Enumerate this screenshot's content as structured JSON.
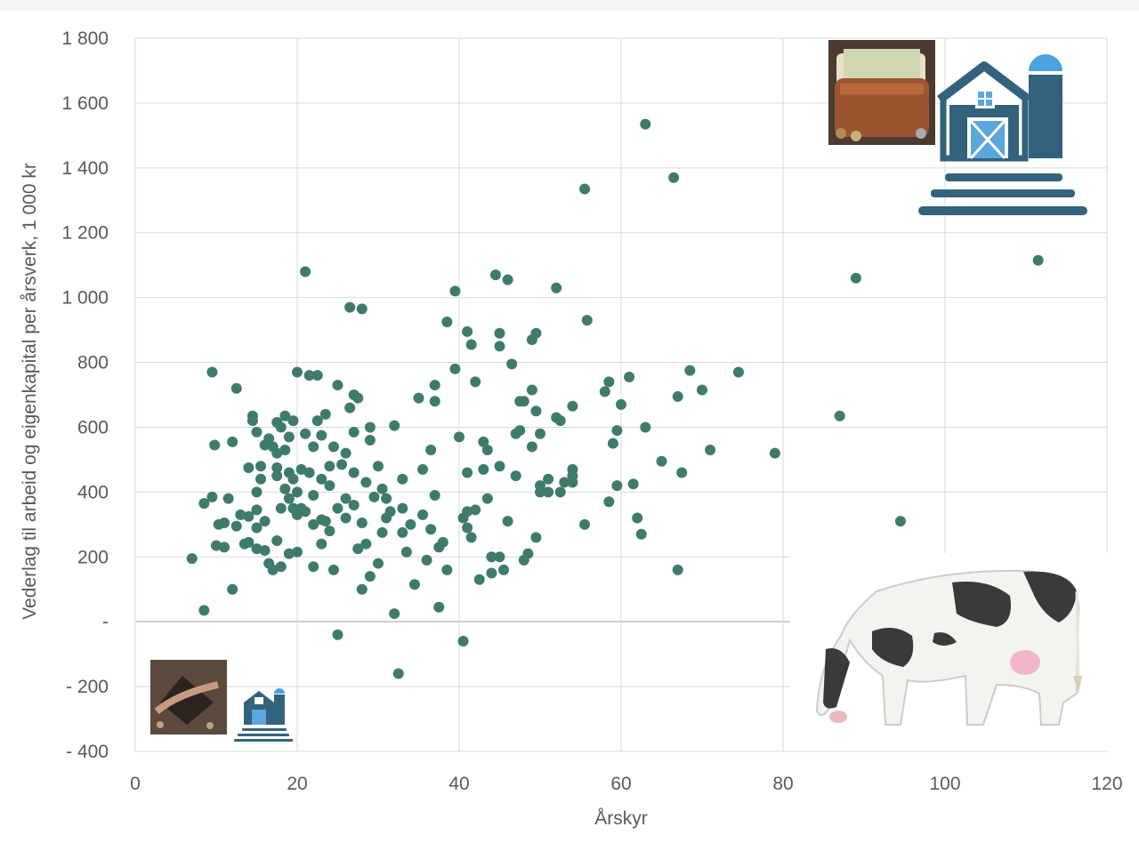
{
  "chart_data": {
    "type": "scatter",
    "xlabel": "Årskyr",
    "ylabel": "Vederlag til arbeid og eigenkapital per årsverk, 1 000 kr",
    "xlim": [
      0,
      120
    ],
    "ylim": [
      -400,
      1800
    ],
    "grid": true,
    "marker_color": "#3f7b6c",
    "x_ticks": [
      "0",
      "20",
      "40",
      "60",
      "80",
      "100",
      "120"
    ],
    "y_ticks": [
      "- 400",
      "- 200",
      "-",
      "200",
      "400",
      "600",
      "800",
      "1 000",
      "1 200",
      "1 400",
      "1 600",
      "1 800"
    ],
    "series": [
      {
        "points": [
          [
            7,
            195
          ],
          [
            8.5,
            35
          ],
          [
            8.5,
            365
          ],
          [
            9.5,
            385
          ],
          [
            9.5,
            770
          ],
          [
            9.8,
            545
          ],
          [
            10,
            235
          ],
          [
            10.3,
            300
          ],
          [
            11,
            230
          ],
          [
            11,
            305
          ],
          [
            11.5,
            380
          ],
          [
            12,
            555
          ],
          [
            12,
            100
          ],
          [
            12.5,
            295
          ],
          [
            12.5,
            720
          ],
          [
            13,
            330
          ],
          [
            13.5,
            240
          ],
          [
            14,
            245
          ],
          [
            14,
            325
          ],
          [
            14,
            475
          ],
          [
            14.5,
            620
          ],
          [
            14.5,
            635
          ],
          [
            15,
            290
          ],
          [
            15,
            345
          ],
          [
            15,
            400
          ],
          [
            15,
            585
          ],
          [
            15,
            225
          ],
          [
            15.5,
            440
          ],
          [
            15.5,
            480
          ],
          [
            16,
            545
          ],
          [
            16,
            310
          ],
          [
            16,
            220
          ],
          [
            16.5,
            180
          ],
          [
            16.5,
            565
          ],
          [
            17,
            160
          ],
          [
            17,
            540
          ],
          [
            17.5,
            250
          ],
          [
            17.5,
            450
          ],
          [
            17.5,
            475
          ],
          [
            17.5,
            520
          ],
          [
            17.5,
            615
          ],
          [
            18,
            600
          ],
          [
            18,
            350
          ],
          [
            18,
            170
          ],
          [
            18.5,
            635
          ],
          [
            18.5,
            410
          ],
          [
            18.5,
            530
          ],
          [
            19,
            380
          ],
          [
            19,
            460
          ],
          [
            19,
            570
          ],
          [
            19,
            210
          ],
          [
            19.5,
            350
          ],
          [
            19.5,
            440
          ],
          [
            19.5,
            620
          ],
          [
            20,
            330
          ],
          [
            20,
            400
          ],
          [
            20,
            770
          ],
          [
            20,
            215
          ],
          [
            20.5,
            350
          ],
          [
            20.5,
            470
          ],
          [
            21,
            340
          ],
          [
            21,
            580
          ],
          [
            21,
            1080
          ],
          [
            21.5,
            460
          ],
          [
            21.5,
            760
          ],
          [
            22,
            540
          ],
          [
            22,
            170
          ],
          [
            22,
            300
          ],
          [
            22,
            390
          ],
          [
            22.5,
            620
          ],
          [
            22.5,
            760
          ],
          [
            23,
            240
          ],
          [
            23,
            315
          ],
          [
            23,
            440
          ],
          [
            23,
            575
          ],
          [
            23.5,
            640
          ],
          [
            23.5,
            310
          ],
          [
            24,
            480
          ],
          [
            24,
            280
          ],
          [
            24,
            420
          ],
          [
            24.5,
            540
          ],
          [
            24.5,
            160
          ],
          [
            25,
            350
          ],
          [
            25,
            730
          ],
          [
            25,
            -40
          ],
          [
            25.5,
            485
          ],
          [
            26,
            520
          ],
          [
            26,
            380
          ],
          [
            26,
            320
          ],
          [
            26.5,
            970
          ],
          [
            26.5,
            660
          ],
          [
            27,
            585
          ],
          [
            27,
            700
          ],
          [
            27,
            360
          ],
          [
            27,
            460
          ],
          [
            27.5,
            690
          ],
          [
            27.5,
            225
          ],
          [
            28,
            965
          ],
          [
            28,
            305
          ],
          [
            28,
            100
          ],
          [
            28.5,
            430
          ],
          [
            28.5,
            240
          ],
          [
            29,
            560
          ],
          [
            29,
            600
          ],
          [
            29,
            140
          ],
          [
            29.5,
            385
          ],
          [
            30,
            480
          ],
          [
            30,
            180
          ],
          [
            30.5,
            410
          ],
          [
            30.5,
            275
          ],
          [
            31,
            320
          ],
          [
            31,
            380
          ],
          [
            31.5,
            340
          ],
          [
            32,
            605
          ],
          [
            32,
            25
          ],
          [
            32.5,
            -160
          ],
          [
            33,
            275
          ],
          [
            33,
            440
          ],
          [
            33,
            350
          ],
          [
            33.5,
            215
          ],
          [
            34,
            300
          ],
          [
            34.5,
            115
          ],
          [
            35,
            690
          ],
          [
            35.5,
            470
          ],
          [
            35.5,
            330
          ],
          [
            36,
            190
          ],
          [
            36.5,
            530
          ],
          [
            36.5,
            285
          ],
          [
            37,
            730
          ],
          [
            37,
            680
          ],
          [
            37,
            390
          ],
          [
            37.5,
            230
          ],
          [
            37.5,
            45
          ],
          [
            38,
            245
          ],
          [
            38.5,
            925
          ],
          [
            38.5,
            160
          ],
          [
            39.5,
            780
          ],
          [
            39.5,
            1020
          ],
          [
            40,
            570
          ],
          [
            40.5,
            320
          ],
          [
            40.5,
            -60
          ],
          [
            41,
            895
          ],
          [
            41,
            460
          ],
          [
            41,
            340
          ],
          [
            41,
            290
          ],
          [
            41.5,
            855
          ],
          [
            41.5,
            260
          ],
          [
            42,
            345
          ],
          [
            42,
            740
          ],
          [
            42.5,
            130
          ],
          [
            43,
            470
          ],
          [
            43,
            555
          ],
          [
            43.5,
            530
          ],
          [
            43.5,
            380
          ],
          [
            44,
            200
          ],
          [
            44,
            150
          ],
          [
            44.5,
            1070
          ],
          [
            45,
            480
          ],
          [
            45,
            850
          ],
          [
            45,
            890
          ],
          [
            45,
            200
          ],
          [
            45.5,
            160
          ],
          [
            46,
            1055
          ],
          [
            46,
            310
          ],
          [
            46.5,
            795
          ],
          [
            47,
            450
          ],
          [
            47,
            580
          ],
          [
            47.5,
            680
          ],
          [
            47.5,
            590
          ],
          [
            48,
            680
          ],
          [
            48,
            190
          ],
          [
            48.5,
            210
          ],
          [
            49,
            715
          ],
          [
            49,
            540
          ],
          [
            49,
            870
          ],
          [
            49.5,
            890
          ],
          [
            49.5,
            650
          ],
          [
            49.5,
            260
          ],
          [
            50,
            420
          ],
          [
            50,
            400
          ],
          [
            50,
            580
          ],
          [
            51,
            400
          ],
          [
            51,
            440
          ],
          [
            52,
            1030
          ],
          [
            52,
            630
          ],
          [
            52.5,
            620
          ],
          [
            52.5,
            400
          ],
          [
            53,
            430
          ],
          [
            54,
            430
          ],
          [
            54,
            450
          ],
          [
            54,
            665
          ],
          [
            54,
            470
          ],
          [
            55.5,
            300
          ],
          [
            55.5,
            1335
          ],
          [
            55.8,
            930
          ],
          [
            58,
            710
          ],
          [
            58.5,
            740
          ],
          [
            58.5,
            370
          ],
          [
            59,
            550
          ],
          [
            59.5,
            590
          ],
          [
            59.5,
            420
          ],
          [
            60,
            670
          ],
          [
            61,
            755
          ],
          [
            61.5,
            425
          ],
          [
            62,
            320
          ],
          [
            62.5,
            270
          ],
          [
            63,
            1535
          ],
          [
            63,
            600
          ],
          [
            65,
            495
          ],
          [
            66.5,
            1370
          ],
          [
            67,
            695
          ],
          [
            67,
            160
          ],
          [
            67.5,
            460
          ],
          [
            68.5,
            775
          ],
          [
            70,
            715
          ],
          [
            71,
            530
          ],
          [
            74.5,
            770
          ],
          [
            79,
            520
          ],
          [
            87,
            635
          ],
          [
            89,
            1060
          ],
          [
            94.5,
            310
          ],
          [
            111.5,
            1115
          ]
        ]
      }
    ]
  }
}
